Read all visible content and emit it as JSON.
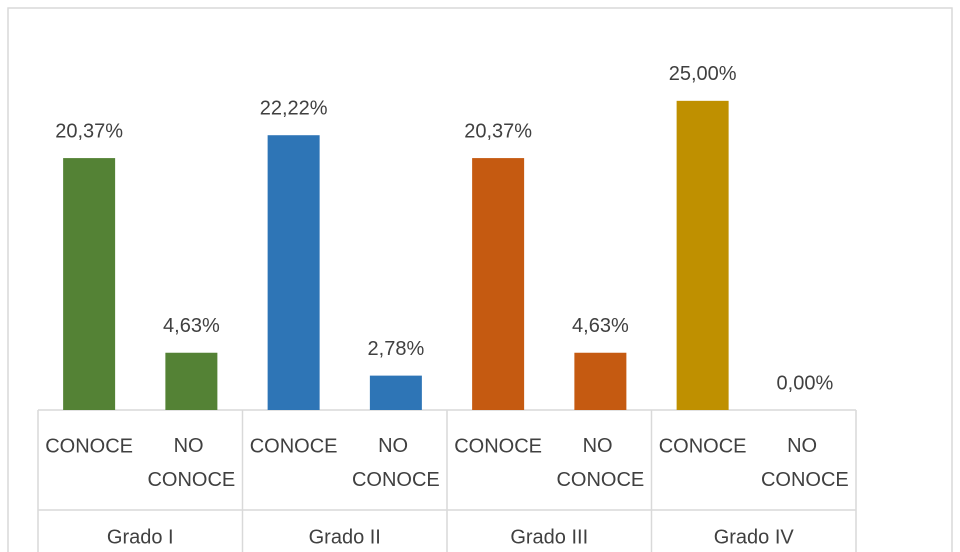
{
  "chart_data": {
    "type": "bar",
    "ylim": [
      0,
      30
    ],
    "groups": [
      {
        "name": "Grado I",
        "color": "#548235",
        "categories": [
          "CONOCE",
          "NO CONOCE"
        ],
        "values": [
          20.37,
          4.63
        ],
        "value_labels": [
          "20,37%",
          "4,63%"
        ]
      },
      {
        "name": "Grado II",
        "color": "#2e75b6",
        "categories": [
          "CONOCE",
          "NO CONOCE"
        ],
        "values": [
          22.22,
          2.78
        ],
        "value_labels": [
          "22,22%",
          "2,78%"
        ]
      },
      {
        "name": "Grado III",
        "color": "#c55a11",
        "categories": [
          "CONOCE",
          "NO CONOCE"
        ],
        "values": [
          20.37,
          4.63
        ],
        "value_labels": [
          "20,37%",
          "4,63%"
        ]
      },
      {
        "name": "Grado IV",
        "color": "#bf9000",
        "categories": [
          "CONOCE",
          "NO CONOCE"
        ],
        "values": [
          25,
          0
        ],
        "value_labels": [
          "25,00%",
          "0,00%"
        ]
      }
    ]
  }
}
